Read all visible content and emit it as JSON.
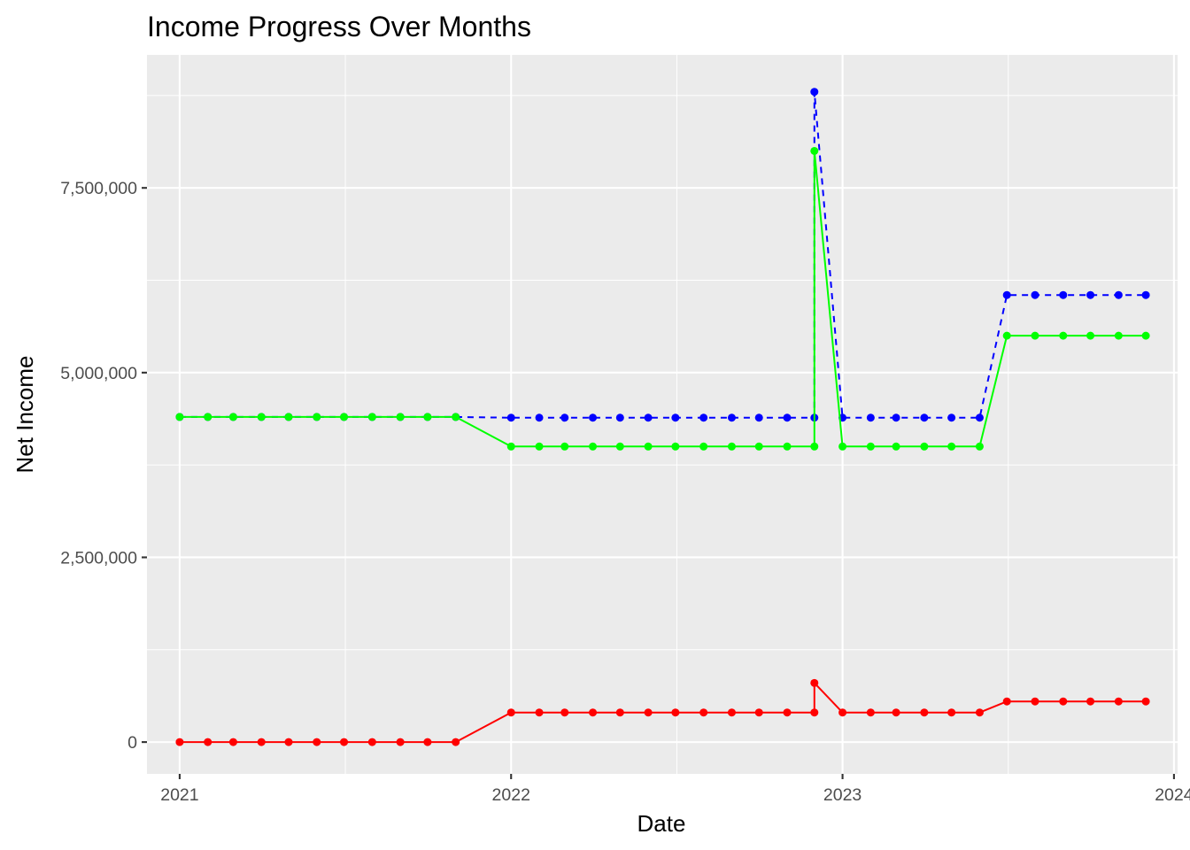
{
  "chart_data": {
    "type": "line",
    "title": "Income Progress Over Months",
    "xlabel": "Date",
    "ylabel": "Net Income",
    "xlim": [
      "2020-11-26",
      "2024-01-05"
    ],
    "ylim": [
      -430000,
      9300000
    ],
    "x_ticks": [
      {
        "date": "2021-01-01",
        "label": "2021"
      },
      {
        "date": "2022-01-01",
        "label": "2022"
      },
      {
        "date": "2023-01-01",
        "label": "2023"
      },
      {
        "date": "2024-01-01",
        "label": "2024"
      }
    ],
    "y_ticks": [
      {
        "value": 0,
        "label": "0"
      },
      {
        "value": 2500000,
        "label": "2,500,000"
      },
      {
        "value": 5000000,
        "label": "5,000,000"
      },
      {
        "value": 7500000,
        "label": "7,500,000"
      }
    ],
    "grid": true,
    "background": "#EBEBEB",
    "x": [
      "2021-01-01",
      "2021-02-01",
      "2021-03-01",
      "2021-04-01",
      "2021-05-01",
      "2021-06-01",
      "2021-07-01",
      "2021-08-01",
      "2021-09-01",
      "2021-10-01",
      "2021-11-01",
      "2022-01-01",
      "2022-02-01",
      "2022-03-01",
      "2022-04-01",
      "2022-05-01",
      "2022-06-01",
      "2022-07-01",
      "2022-08-01",
      "2022-09-01",
      "2022-10-01",
      "2022-11-01",
      "2022-12-01",
      "2022-12-01",
      "2023-01-01",
      "2023-02-01",
      "2023-03-01",
      "2023-04-01",
      "2023-05-01",
      "2023-06-01",
      "2023-07-01",
      "2023-08-01",
      "2023-09-01",
      "2023-10-01",
      "2023-11-01",
      "2023-12-01"
    ],
    "series": [
      {
        "color": "#0000FF",
        "line_style": "dashed",
        "values": [
          4400000,
          4400000,
          4400000,
          4400000,
          4400000,
          4400000,
          4400000,
          4400000,
          4400000,
          4400000,
          4400000,
          4390000,
          4390000,
          4390000,
          4390000,
          4390000,
          4390000,
          4390000,
          4390000,
          4390000,
          4390000,
          4390000,
          4390000,
          8800000,
          4390000,
          4390000,
          4390000,
          4390000,
          4390000,
          4390000,
          6050000,
          6050000,
          6050000,
          6050000,
          6050000,
          6050000
        ]
      },
      {
        "color": "#00FF00",
        "line_style": "solid",
        "values": [
          4400000,
          4400000,
          4400000,
          4400000,
          4400000,
          4400000,
          4400000,
          4400000,
          4400000,
          4400000,
          4400000,
          4000000,
          4000000,
          4000000,
          4000000,
          4000000,
          4000000,
          4000000,
          4000000,
          4000000,
          4000000,
          4000000,
          4000000,
          8000000,
          4000000,
          4000000,
          4000000,
          4000000,
          4000000,
          4000000,
          5500000,
          5500000,
          5500000,
          5500000,
          5500000,
          5500000
        ]
      },
      {
        "color": "#FF0000",
        "line_style": "solid",
        "values": [
          0,
          0,
          0,
          0,
          0,
          0,
          0,
          0,
          0,
          0,
          0,
          400000,
          400000,
          400000,
          400000,
          400000,
          400000,
          400000,
          400000,
          400000,
          400000,
          400000,
          400000,
          800000,
          400000,
          400000,
          400000,
          400000,
          400000,
          400000,
          550000,
          550000,
          550000,
          550000,
          550000,
          550000
        ]
      }
    ]
  }
}
